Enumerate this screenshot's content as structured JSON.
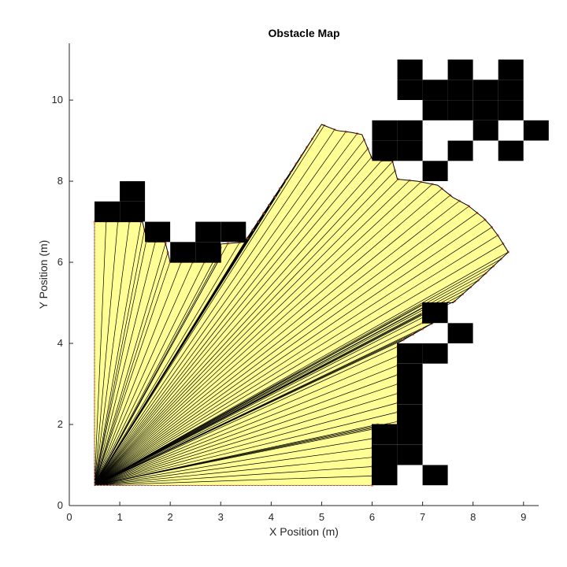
{
  "chart_data": {
    "type": "occupancy-map-with-lidar-scan",
    "title": "Obstacle Map",
    "xlabel": "X Position (m)",
    "ylabel": "Y Position (m)",
    "xlim": [
      0,
      9.3
    ],
    "ylim": [
      0,
      11.4
    ],
    "xticks": [
      0,
      1,
      2,
      3,
      4,
      5,
      6,
      7,
      8,
      9
    ],
    "yticks": [
      0,
      2,
      4,
      6,
      8,
      10
    ],
    "grid": false,
    "legend": "none",
    "cell_size": 0.5,
    "colors": {
      "occupied": "#000000",
      "scan_fill": "#ffff96",
      "scan_edge": "#000000",
      "hit_points": "#ff7f50",
      "axis": "#262626"
    },
    "occupied_cells": [
      [
        0.5,
        7.0
      ],
      [
        1.0,
        7.0
      ],
      [
        1.0,
        7.5
      ],
      [
        1.5,
        6.5
      ],
      [
        2.0,
        6.0
      ],
      [
        2.5,
        6.0
      ],
      [
        2.5,
        6.5
      ],
      [
        3.0,
        6.5
      ],
      [
        6.5,
        10.0
      ],
      [
        6.5,
        10.5
      ],
      [
        7.0,
        9.5
      ],
      [
        7.0,
        10.0
      ],
      [
        7.5,
        9.5
      ],
      [
        7.5,
        10.0
      ],
      [
        7.5,
        10.5
      ],
      [
        8.0,
        9.0
      ],
      [
        8.0,
        9.5
      ],
      [
        8.0,
        10.0
      ],
      [
        8.5,
        9.5
      ],
      [
        8.5,
        10.0
      ],
      [
        8.5,
        10.5
      ],
      [
        9.0,
        9.0
      ],
      [
        6.0,
        8.5
      ],
      [
        6.0,
        9.0
      ],
      [
        6.5,
        8.5
      ],
      [
        6.5,
        9.0
      ],
      [
        7.0,
        8.0
      ],
      [
        7.5,
        8.5
      ],
      [
        8.5,
        8.5
      ],
      [
        7.0,
        4.5
      ],
      [
        7.5,
        4.0
      ],
      [
        6.5,
        3.5
      ],
      [
        7.0,
        3.5
      ],
      [
        6.5,
        1.5
      ],
      [
        6.5,
        2.0
      ],
      [
        6.5,
        2.5
      ],
      [
        6.5,
        3.0
      ],
      [
        6.0,
        0.5
      ],
      [
        6.0,
        1.0
      ],
      [
        6.0,
        1.5
      ],
      [
        6.5,
        1.0
      ],
      [
        7.0,
        0.5
      ]
    ],
    "scan_origin": [
      0.5,
      0.5
    ],
    "scan_boundary": [
      [
        0.5,
        7.0
      ],
      [
        1.0,
        7.0
      ],
      [
        1.45,
        7.0
      ],
      [
        1.55,
        6.5
      ],
      [
        1.9,
        6.5
      ],
      [
        2.0,
        6.0
      ],
      [
        2.5,
        6.0
      ],
      [
        3.0,
        6.0
      ],
      [
        3.0,
        6.45
      ],
      [
        3.5,
        6.5
      ],
      [
        3.5,
        6.55
      ],
      [
        4.4,
        8.25
      ],
      [
        5.0,
        9.4
      ],
      [
        5.3,
        9.25
      ],
      [
        5.6,
        9.2
      ],
      [
        5.8,
        9.15
      ],
      [
        6.0,
        8.55
      ],
      [
        6.2,
        8.5
      ],
      [
        6.4,
        8.5
      ],
      [
        6.5,
        8.05
      ],
      [
        6.9,
        8.0
      ],
      [
        7.3,
        7.9
      ],
      [
        7.6,
        7.6
      ],
      [
        7.9,
        7.4
      ],
      [
        8.2,
        7.1
      ],
      [
        8.35,
        6.9
      ],
      [
        8.5,
        6.65
      ],
      [
        8.7,
        6.25
      ],
      [
        8.1,
        5.55
      ],
      [
        7.6,
        5.0
      ],
      [
        7.0,
        5.0
      ],
      [
        7.0,
        4.5
      ],
      [
        7.2,
        4.5
      ],
      [
        6.5,
        4.0
      ],
      [
        6.5,
        3.5
      ],
      [
        6.5,
        2.0
      ],
      [
        6.0,
        2.0
      ],
      [
        6.0,
        1.5
      ],
      [
        6.0,
        0.5
      ]
    ]
  }
}
